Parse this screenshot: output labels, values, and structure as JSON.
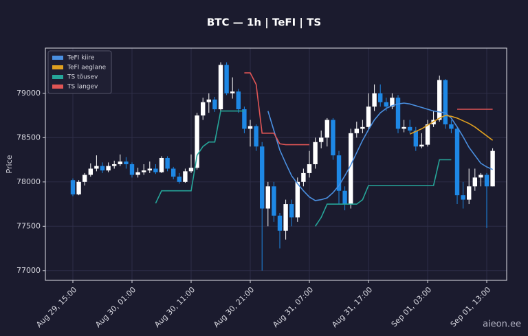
{
  "chart_data": {
    "type": "candlestick",
    "title": "BTC — 1h  |  TeFI  |  TS",
    "ylabel": "Price",
    "watermark": "aieon.ee",
    "x": [
      "Aug 29, 15:00",
      "Aug 29, 16:00",
      "Aug 29, 17:00",
      "Aug 29, 18:00",
      "Aug 29, 19:00",
      "Aug 29, 20:00",
      "Aug 29, 21:00",
      "Aug 29, 22:00",
      "Aug 29, 23:00",
      "Aug 30, 00:00",
      "Aug 30, 01:00",
      "Aug 30, 02:00",
      "Aug 30, 03:00",
      "Aug 30, 04:00",
      "Aug 30, 05:00",
      "Aug 30, 06:00",
      "Aug 30, 07:00",
      "Aug 30, 08:00",
      "Aug 30, 09:00",
      "Aug 30, 10:00",
      "Aug 30, 11:00",
      "Aug 30, 12:00",
      "Aug 30, 13:00",
      "Aug 30, 14:00",
      "Aug 30, 15:00",
      "Aug 30, 16:00",
      "Aug 30, 17:00",
      "Aug 30, 18:00",
      "Aug 30, 19:00",
      "Aug 30, 20:00",
      "Aug 30, 21:00",
      "Aug 30, 22:00",
      "Aug 30, 23:00",
      "Aug 31, 00:00",
      "Aug 31, 01:00",
      "Aug 31, 02:00",
      "Aug 31, 03:00",
      "Aug 31, 04:00",
      "Aug 31, 05:00",
      "Aug 31, 06:00",
      "Aug 31, 07:00",
      "Aug 31, 08:00",
      "Aug 31, 09:00",
      "Aug 31, 10:00",
      "Aug 31, 11:00",
      "Aug 31, 12:00",
      "Aug 31, 13:00",
      "Aug 31, 14:00",
      "Aug 31, 15:00",
      "Aug 31, 16:00",
      "Aug 31, 17:00",
      "Aug 31, 18:00",
      "Aug 31, 19:00",
      "Aug 31, 20:00",
      "Aug 31, 21:00",
      "Aug 31, 22:00",
      "Aug 31, 23:00",
      "Sep 01, 00:00",
      "Sep 01, 01:00",
      "Sep 01, 02:00",
      "Sep 01, 03:00",
      "Sep 01, 04:00",
      "Sep 01, 05:00",
      "Sep 01, 06:00",
      "Sep 01, 07:00",
      "Sep 01, 08:00",
      "Sep 01, 09:00",
      "Sep 01, 10:00",
      "Sep 01, 11:00",
      "Sep 01, 12:00",
      "Sep 01, 13:00",
      "Sep 01, 14:00"
    ],
    "open": [
      78020,
      77860,
      78000,
      78080,
      78150,
      78180,
      78130,
      78180,
      78200,
      78230,
      78200,
      78080,
      78110,
      78130,
      78150,
      78110,
      78270,
      78150,
      78060,
      78000,
      78120,
      78160,
      78750,
      78900,
      78930,
      78820,
      79320,
      79000,
      79020,
      78820,
      78600,
      78630,
      78400,
      77700,
      77950,
      77620,
      77450,
      77750,
      77600,
      78000,
      78100,
      78200,
      78450,
      78500,
      78700,
      78300,
      77900,
      77750,
      78550,
      78600,
      78620,
      78850,
      79000,
      78900,
      78850,
      78950,
      78600,
      78620,
      78580,
      78400,
      78420,
      78650,
      78700,
      79150,
      78650,
      78600,
      77850,
      77800,
      77950,
      78050,
      78080,
      77950
    ],
    "high": [
      78040,
      78020,
      78100,
      78210,
      78300,
      78220,
      78220,
      78240,
      78310,
      78280,
      78220,
      78160,
      78200,
      78230,
      78200,
      78290,
      78290,
      78170,
      78100,
      78150,
      78310,
      78780,
      78950,
      79000,
      78960,
      79350,
      79350,
      79180,
      79050,
      78850,
      78700,
      78650,
      78450,
      78000,
      78000,
      77650,
      77800,
      77800,
      78050,
      78150,
      78350,
      78500,
      78580,
      78720,
      78720,
      78350,
      77950,
      78600,
      78680,
      78700,
      79000,
      79100,
      79100,
      78950,
      79000,
      78980,
      78700,
      78700,
      78620,
      78550,
      78700,
      78800,
      79200,
      79160,
      78700,
      78620,
      78000,
      78150,
      78150,
      78100,
      78100,
      78380
    ],
    "low": [
      77840,
      77850,
      77960,
      78060,
      78120,
      78100,
      78110,
      78150,
      78180,
      78150,
      78050,
      78050,
      78080,
      78100,
      78090,
      78100,
      78120,
      78030,
      77980,
      77990,
      78100,
      78140,
      78700,
      78780,
      78790,
      78800,
      78980,
      78940,
      78780,
      78550,
      78400,
      78350,
      77000,
      77500,
      77550,
      77250,
      77350,
      77500,
      77550,
      77950,
      78050,
      78150,
      78380,
      78400,
      78250,
      77750,
      77680,
      77700,
      78500,
      78550,
      78600,
      78800,
      78850,
      78800,
      78820,
      78550,
      78560,
      78550,
      78350,
      78380,
      78400,
      78620,
      78680,
      78600,
      78550,
      77750,
      77700,
      77750,
      77900,
      77950,
      77480,
      77950
    ],
    "close": [
      77860,
      78000,
      78080,
      78150,
      78180,
      78130,
      78180,
      78200,
      78230,
      78200,
      78080,
      78110,
      78130,
      78150,
      78110,
      78270,
      78150,
      78060,
      78000,
      78120,
      78160,
      78750,
      78900,
      78930,
      78820,
      79320,
      79000,
      79020,
      78820,
      78600,
      78630,
      78400,
      77700,
      77950,
      77620,
      77450,
      77750,
      77600,
      78000,
      78100,
      78200,
      78450,
      78500,
      78700,
      78300,
      77900,
      77750,
      78550,
      78600,
      78620,
      78850,
      79000,
      78900,
      78850,
      78950,
      78600,
      78620,
      78580,
      78400,
      78420,
      78650,
      78700,
      79150,
      78650,
      78600,
      77850,
      77800,
      77950,
      78050,
      78080,
      77950,
      78350
    ],
    "up_color": "#ffffff",
    "down_color": "#1e88e5",
    "lines": [
      {
        "name": "TeFI kiire",
        "color": "#4a8fe0",
        "values": [
          null,
          null,
          null,
          null,
          null,
          null,
          null,
          null,
          null,
          null,
          null,
          null,
          null,
          null,
          null,
          null,
          null,
          null,
          null,
          null,
          null,
          null,
          null,
          null,
          null,
          null,
          null,
          null,
          null,
          null,
          null,
          null,
          null,
          78800,
          78580,
          78360,
          78210,
          78070,
          77980,
          77900,
          77830,
          77790,
          77800,
          77820,
          77880,
          77960,
          78070,
          78190,
          78330,
          78470,
          78590,
          78700,
          78780,
          78830,
          78860,
          78880,
          78890,
          78880,
          78860,
          78840,
          78820,
          78800,
          78790,
          78780,
          78720,
          78620,
          78510,
          78390,
          78300,
          78210,
          78170,
          78140
        ]
      },
      {
        "name": "TeFI aeglane",
        "color": "#e0a020",
        "values": [
          null,
          null,
          null,
          null,
          null,
          null,
          null,
          null,
          null,
          null,
          null,
          null,
          null,
          null,
          null,
          null,
          null,
          null,
          null,
          null,
          null,
          null,
          null,
          null,
          null,
          null,
          null,
          null,
          null,
          null,
          null,
          null,
          null,
          null,
          null,
          null,
          null,
          null,
          null,
          null,
          null,
          null,
          null,
          null,
          null,
          null,
          null,
          null,
          null,
          null,
          null,
          null,
          null,
          null,
          null,
          null,
          null,
          78540,
          78570,
          78600,
          78640,
          78680,
          78720,
          78750,
          78740,
          78720,
          78690,
          78660,
          78620,
          78570,
          78520,
          78470
        ]
      },
      {
        "name": "TS tõusev",
        "color": "#26a69a",
        "values": [
          null,
          null,
          null,
          null,
          null,
          null,
          null,
          null,
          null,
          null,
          null,
          null,
          null,
          null,
          77760,
          77900,
          77900,
          77900,
          77900,
          77900,
          77900,
          78300,
          78400,
          78450,
          78450,
          78800,
          78800,
          78800,
          78800,
          78800,
          null,
          null,
          null,
          null,
          null,
          null,
          null,
          null,
          null,
          null,
          null,
          77500,
          77600,
          77750,
          77750,
          77750,
          77750,
          77750,
          77750,
          77800,
          77960,
          77960,
          77960,
          77960,
          77960,
          77960,
          77960,
          77960,
          77960,
          77960,
          77960,
          77960,
          78250,
          78250,
          78250,
          null,
          null,
          null,
          null,
          null,
          null,
          null
        ]
      },
      {
        "name": "TS langev",
        "color": "#e05555",
        "values": [
          null,
          null,
          null,
          null,
          null,
          null,
          null,
          null,
          null,
          null,
          null,
          null,
          null,
          null,
          null,
          null,
          null,
          null,
          null,
          null,
          null,
          null,
          null,
          null,
          null,
          null,
          null,
          null,
          null,
          79230,
          79230,
          79100,
          78550,
          78550,
          78550,
          78430,
          78420,
          78420,
          78420,
          78420,
          78420,
          null,
          null,
          null,
          null,
          null,
          null,
          null,
          null,
          null,
          null,
          null,
          null,
          null,
          null,
          null,
          null,
          null,
          null,
          null,
          null,
          null,
          null,
          null,
          null,
          78820,
          78820,
          78820,
          78820,
          78820,
          78820,
          78820
        ]
      }
    ],
    "ylim": [
      76890,
      79510
    ],
    "yticks": [
      77000,
      77500,
      78000,
      78500,
      79000
    ],
    "xticks": [
      "Aug 29, 15:00",
      "Aug 30, 01:00",
      "Aug 30, 11:00",
      "Aug 30, 21:00",
      "Aug 31, 07:00",
      "Aug 31, 17:00",
      "Sep 01, 03:00",
      "Sep 01, 13:00"
    ],
    "grid": true,
    "legend": "upper left"
  }
}
